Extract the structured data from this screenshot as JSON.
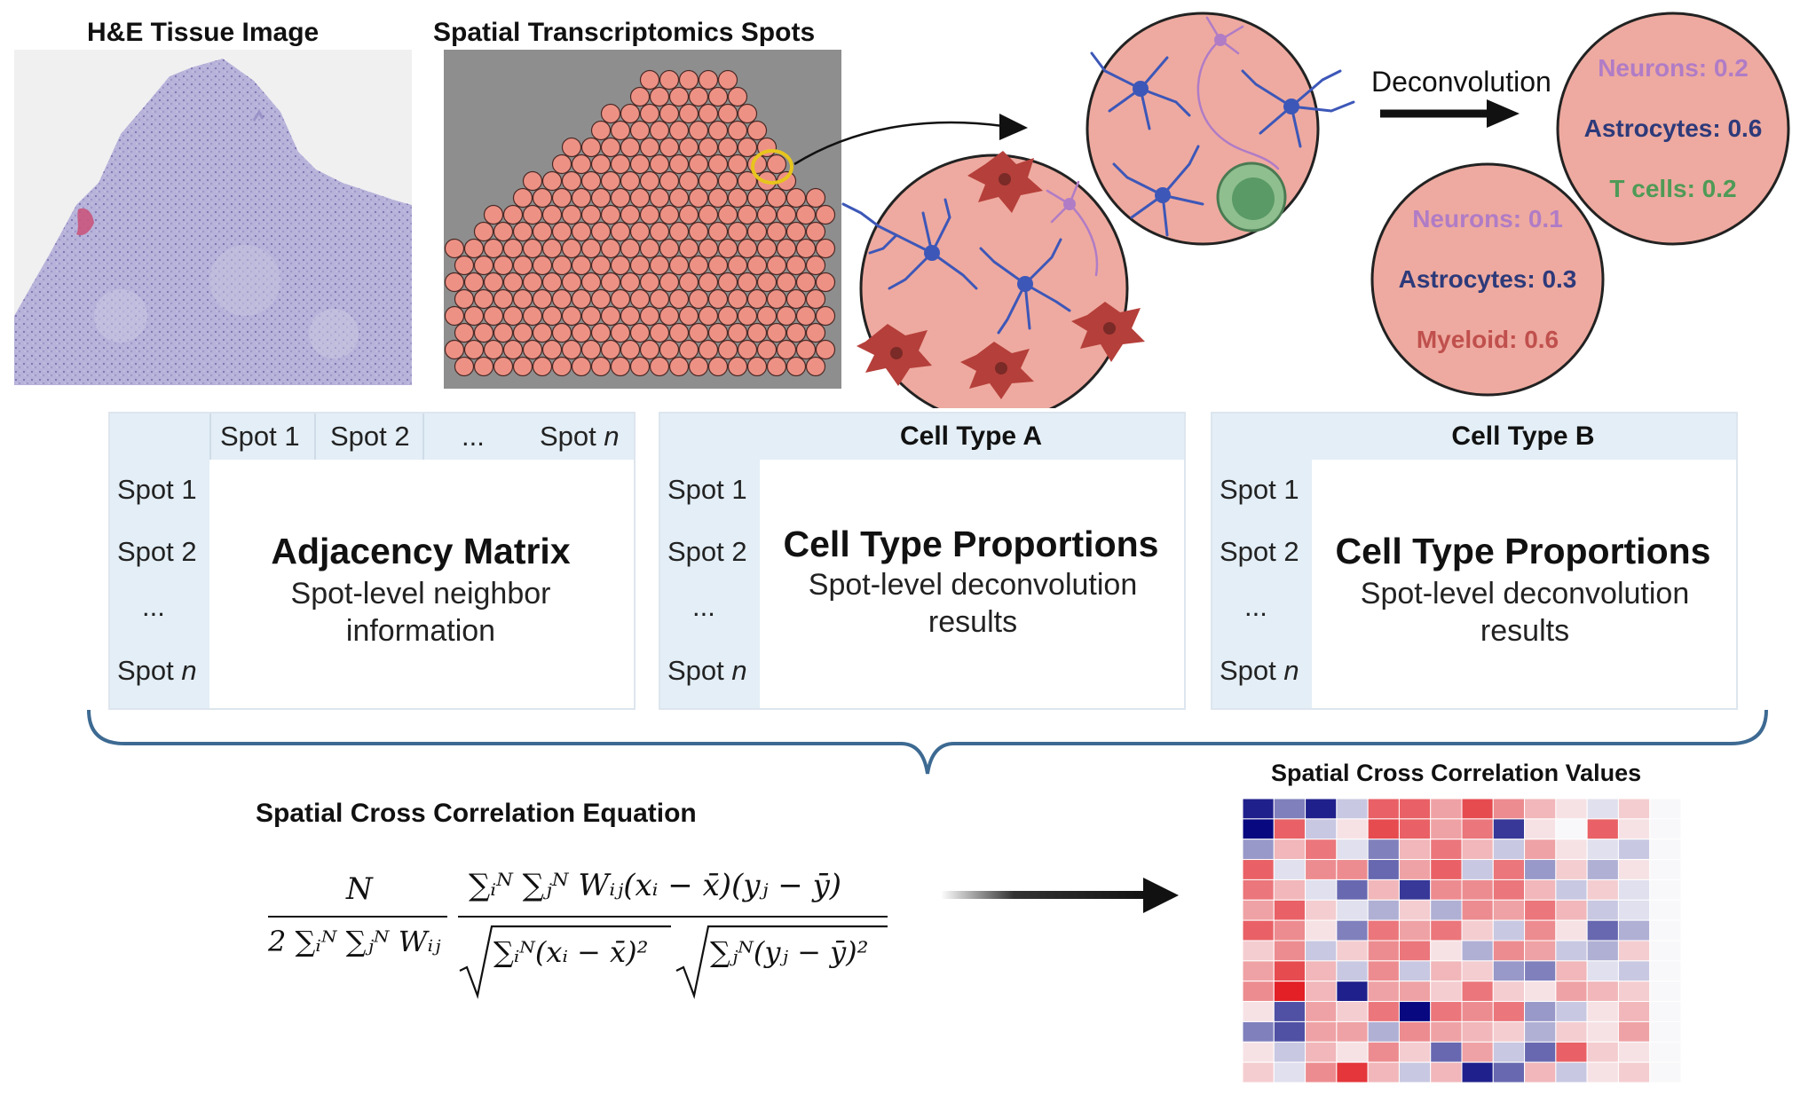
{
  "headings": {
    "he_image": "H&E Tissue Image",
    "st_spots": "Spatial Transcriptomics Spots",
    "deconvolution": "Deconvolution",
    "equation": "Spatial Cross Correlation Equation",
    "values": "Spatial Cross Correlation Values"
  },
  "spots": {
    "circle1": [
      {
        "label": "Neurons: 0.2",
        "color": "#b07cc6"
      },
      {
        "label": "Astrocytes: 0.6",
        "color": "#2d3a7a"
      },
      {
        "label": "T cells: 0.2",
        "color": "#4e9a56"
      }
    ],
    "circle2": [
      {
        "label": "Neurons: 0.1",
        "color": "#b07cc6"
      },
      {
        "label": "Astrocytes: 0.3",
        "color": "#2d3a7a"
      },
      {
        "label": "Myeloid: 0.6",
        "color": "#c0504d"
      }
    ]
  },
  "adjacency": {
    "col_headers": [
      "Spot 1",
      "Spot 2",
      "...",
      "Spot"
    ],
    "row_headers": [
      "Spot 1",
      "Spot 2",
      "...",
      "Spot"
    ],
    "n_symbol": "n",
    "title": "Adjacency Matrix",
    "subtitle": "Spot-level neighbor information"
  },
  "cell_type_a": {
    "header": "Cell Type A",
    "row_headers": [
      "Spot 1",
      "Spot 2",
      "...",
      "Spot"
    ],
    "n_symbol": "n",
    "title": "Cell Type Proportions",
    "subtitle": "Spot-level deconvolution results"
  },
  "cell_type_b": {
    "header": "Cell Type B",
    "row_headers": [
      "Spot 1",
      "Spot 2",
      "...",
      "Spot"
    ],
    "n_symbol": "n",
    "title": "Cell Type Proportions",
    "subtitle": "Spot-level deconvolution results"
  },
  "equation": {
    "left_numerator": "N",
    "left_denominator": "2 ∑ᵢᴺ ∑ⱼᴺ Wᵢⱼ",
    "right_numerator": "∑ᵢᴺ ∑ⱼᴺ Wᵢⱼ(xᵢ − x̄)(yⱼ − ȳ)",
    "right_denominator_a": "∑ᵢᴺ(xᵢ − x̄)²",
    "right_denominator_b": "∑ⱼᴺ(yⱼ − ȳ)²"
  },
  "heatmap": {
    "rows": 14,
    "cols": 14,
    "values": [
      [
        -0.9,
        -0.5,
        -0.9,
        -0.2,
        0.7,
        0.7,
        0.4,
        0.8,
        0.5,
        0.3,
        0.1,
        -0.1,
        0.2,
        0.0
      ],
      [
        -1.0,
        0.7,
        -0.2,
        0.1,
        0.8,
        0.7,
        0.4,
        0.6,
        -0.8,
        0.1,
        0.0,
        0.7,
        0.1,
        0.0
      ],
      [
        -0.4,
        0.3,
        0.6,
        -0.1,
        -0.5,
        0.3,
        0.6,
        0.3,
        -0.2,
        0.4,
        0.1,
        -0.1,
        -0.2,
        0.0
      ],
      [
        0.7,
        -0.1,
        0.5,
        0.5,
        -0.6,
        0.4,
        0.7,
        -0.2,
        0.6,
        -0.4,
        0.2,
        -0.3,
        0.1,
        0.0
      ],
      [
        0.6,
        0.3,
        -0.1,
        -0.6,
        0.3,
        -0.8,
        0.5,
        0.5,
        0.6,
        0.3,
        -0.2,
        0.2,
        -0.1,
        0.0
      ],
      [
        0.4,
        0.7,
        0.2,
        -0.1,
        -0.3,
        0.2,
        -0.3,
        0.5,
        0.4,
        0.6,
        0.3,
        -0.2,
        -0.1,
        0.0
      ],
      [
        0.7,
        0.5,
        0.1,
        -0.5,
        0.6,
        0.4,
        0.6,
        0.2,
        -0.2,
        0.5,
        0.1,
        -0.6,
        -0.3,
        0.0
      ],
      [
        0.2,
        0.5,
        -0.2,
        0.2,
        0.5,
        0.6,
        0.1,
        -0.3,
        0.5,
        0.4,
        -0.2,
        -0.3,
        0.2,
        0.0
      ],
      [
        0.4,
        0.8,
        0.3,
        -0.2,
        0.5,
        -0.2,
        0.3,
        0.2,
        -0.4,
        -0.5,
        0.3,
        -0.1,
        -0.2,
        0.0
      ],
      [
        0.5,
        1.0,
        0.3,
        -0.9,
        0.4,
        0.4,
        0.2,
        0.6,
        0.2,
        0.1,
        0.4,
        0.3,
        0.2,
        0.0
      ],
      [
        0.1,
        -0.7,
        0.4,
        0.2,
        0.6,
        -1.0,
        0.6,
        0.5,
        0.6,
        -0.4,
        -0.2,
        0.1,
        0.3,
        0.0
      ],
      [
        -0.5,
        -0.7,
        0.4,
        0.4,
        -0.3,
        0.5,
        0.4,
        0.3,
        0.2,
        -0.3,
        0.2,
        0.1,
        0.4,
        0.0
      ],
      [
        0.1,
        -0.2,
        0.3,
        0.1,
        0.5,
        0.2,
        -0.6,
        0.4,
        -0.2,
        -0.6,
        0.7,
        0.2,
        0.1,
        0.0
      ],
      [
        0.2,
        -0.1,
        0.5,
        0.9,
        0.3,
        -0.2,
        0.3,
        -0.9,
        -0.6,
        0.3,
        -0.2,
        0.1,
        0.2,
        0.0
      ]
    ]
  },
  "colors": {
    "spot_fill": "#ee9185",
    "spot_stroke": "#4a2a26",
    "circle_fill": "#eeaaa0",
    "panel_header": "#e3eef6",
    "brace": "#3d6a92",
    "neuron_blue": "#3d57b8",
    "neuron_purple": "#b07cc6",
    "myeloid_red": "#b53f3a",
    "tcell_green": "#5a9a66",
    "highlight_ring": "#e7c51d"
  }
}
